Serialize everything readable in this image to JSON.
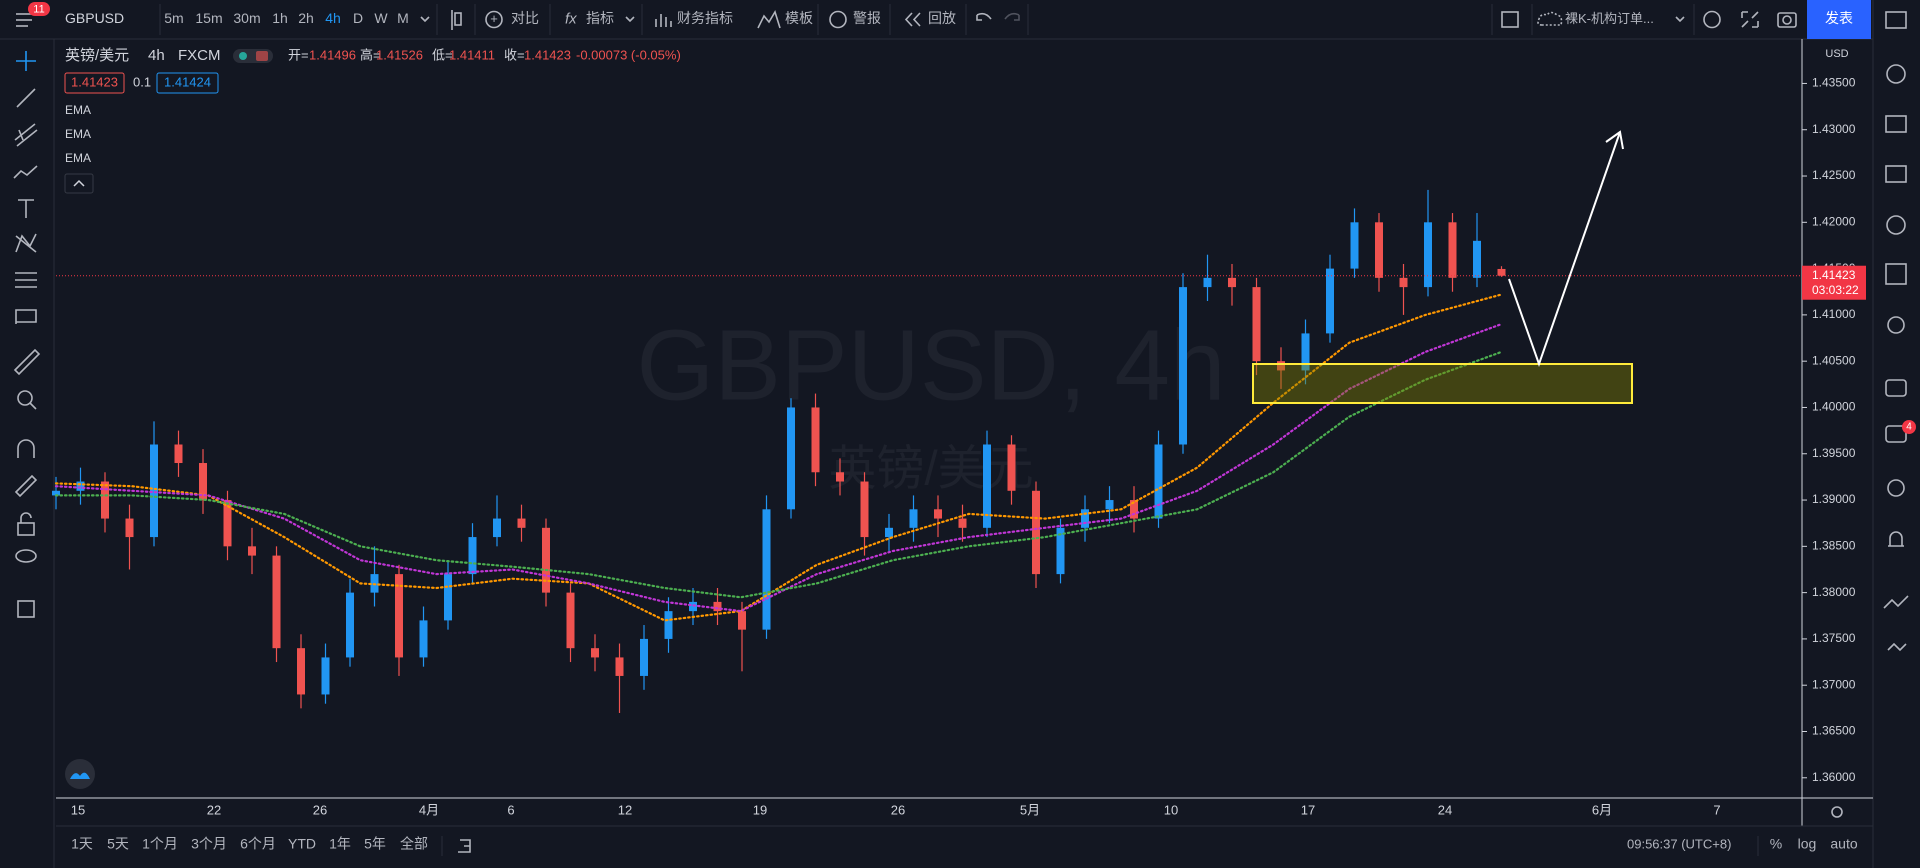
{
  "toolbar": {
    "badge": "11",
    "symbol": "GBPUSD",
    "intervals": [
      "5m",
      "15m",
      "30m",
      "1h",
      "2h",
      "4h",
      "D",
      "W",
      "M"
    ],
    "buttons": [
      "对比",
      "指标",
      "财务指标",
      "模板",
      "警报",
      "回放"
    ],
    "layout_name": "裸K-机构订单...",
    "publish": "发表"
  },
  "legend": {
    "name": "英镑/美元",
    "interval": "4h",
    "source": "FXCM",
    "ohlc": [
      {
        "label": "开=",
        "value": 1.41496
      },
      {
        "label": "高=",
        "value": 1.41526
      },
      {
        "label": "低=",
        "value": 1.41411
      },
      {
        "label": "收=",
        "value": 1.41423
      }
    ],
    "change": "-0.00073 (-0.05%)",
    "bid": 1.41423,
    "spread": 0.1,
    "ask": 1.41424
  },
  "watermark": {
    "symbol": "GBPUSD, 4h",
    "name": "英镑/美元"
  },
  "chart_data": {
    "type": "candlestick",
    "currency": "USD",
    "up_color": "#2196f3",
    "down_color": "#ef5350",
    "open": [
      1.3905,
      1.391,
      1.392,
      1.388,
      1.386,
      1.396,
      1.394,
      1.39,
      1.385,
      1.384,
      1.374,
      1.369,
      1.373,
      1.38,
      1.382,
      1.373,
      1.377,
      1.382,
      1.386,
      1.388,
      1.387,
      1.38,
      1.374,
      1.373,
      1.371,
      1.375,
      1.378,
      1.379,
      1.378,
      1.376,
      1.389,
      1.4,
      1.393,
      1.392,
      1.386,
      1.387,
      1.389,
      1.388,
      1.387,
      1.396,
      1.391,
      1.382,
      1.387,
      1.389,
      1.39,
      1.388,
      1.396,
      1.413,
      1.414,
      1.413,
      1.405,
      1.404,
      1.408,
      1.415,
      1.42,
      1.414,
      1.413,
      1.42,
      1.414,
      1.41496
    ],
    "high": [
      1.3925,
      1.3935,
      1.393,
      1.3895,
      1.3985,
      1.3975,
      1.3955,
      1.391,
      1.387,
      1.385,
      1.3755,
      1.3745,
      1.3815,
      1.385,
      1.383,
      1.3785,
      1.3835,
      1.3875,
      1.3905,
      1.3895,
      1.388,
      1.381,
      1.3755,
      1.3745,
      1.3765,
      1.3795,
      1.3805,
      1.3805,
      1.379,
      1.3905,
      1.401,
      1.4015,
      1.3945,
      1.393,
      1.3885,
      1.3905,
      1.3905,
      1.3895,
      1.3975,
      1.397,
      1.392,
      1.388,
      1.3905,
      1.3915,
      1.3915,
      1.3975,
      1.4145,
      1.4165,
      1.4155,
      1.414,
      1.4065,
      1.4095,
      1.4165,
      1.4215,
      1.421,
      1.4155,
      1.4235,
      1.421,
      1.421,
      1.41526
    ],
    "low": [
      1.389,
      1.3895,
      1.3865,
      1.3825,
      1.385,
      1.3925,
      1.3885,
      1.3835,
      1.382,
      1.3725,
      1.3675,
      1.368,
      1.372,
      1.3785,
      1.371,
      1.372,
      1.376,
      1.381,
      1.385,
      1.3855,
      1.3785,
      1.3725,
      1.3715,
      1.367,
      1.3695,
      1.3735,
      1.3765,
      1.3765,
      1.3715,
      1.375,
      1.388,
      1.3915,
      1.3905,
      1.384,
      1.3845,
      1.3855,
      1.386,
      1.3855,
      1.386,
      1.3895,
      1.3805,
      1.381,
      1.3855,
      1.3875,
      1.3865,
      1.387,
      1.395,
      1.4115,
      1.411,
      1.4035,
      1.402,
      1.4025,
      1.407,
      1.414,
      1.4125,
      1.41,
      1.412,
      1.4125,
      1.413,
      1.41411
    ],
    "close": [
      1.391,
      1.392,
      1.388,
      1.386,
      1.396,
      1.394,
      1.39,
      1.385,
      1.384,
      1.374,
      1.369,
      1.373,
      1.38,
      1.382,
      1.373,
      1.377,
      1.382,
      1.386,
      1.388,
      1.387,
      1.38,
      1.374,
      1.373,
      1.371,
      1.375,
      1.378,
      1.379,
      1.378,
      1.376,
      1.389,
      1.4,
      1.393,
      1.392,
      1.386,
      1.387,
      1.389,
      1.388,
      1.387,
      1.396,
      1.391,
      1.382,
      1.387,
      1.389,
      1.39,
      1.388,
      1.396,
      1.413,
      1.414,
      1.413,
      1.405,
      1.404,
      1.408,
      1.415,
      1.42,
      1.414,
      1.413,
      1.42,
      1.414,
      1.418,
      1.41423
    ],
    "series": [
      {
        "name": "EMA",
        "color": "#ff9800",
        "values": [
          1.3918,
          1.3915,
          1.3905,
          1.386,
          1.381,
          1.3805,
          1.3815,
          1.381,
          1.377,
          1.378,
          1.383,
          1.386,
          1.3885,
          1.388,
          1.389,
          1.3935,
          1.4005,
          1.407,
          1.41,
          1.4122
        ]
      },
      {
        "name": "EMA",
        "color": "#c036d6",
        "values": [
          1.3915,
          1.391,
          1.3905,
          1.388,
          1.3835,
          1.382,
          1.3825,
          1.381,
          1.379,
          1.378,
          1.382,
          1.3845,
          1.386,
          1.387,
          1.388,
          1.391,
          1.396,
          1.402,
          1.406,
          1.409
        ]
      },
      {
        "name": "EMA",
        "color": "#4caf50",
        "values": [
          1.3905,
          1.3905,
          1.39,
          1.3885,
          1.385,
          1.3835,
          1.3828,
          1.382,
          1.3805,
          1.3795,
          1.381,
          1.3835,
          1.385,
          1.386,
          1.3875,
          1.389,
          1.393,
          1.399,
          1.403,
          1.406
        ]
      }
    ],
    "ylim": [
      1.3576,
      1.4398
    ],
    "yticks": [
      {
        "value": 1.36,
        "label": "1.36000"
      },
      {
        "value": 1.365,
        "label": "1.36500"
      },
      {
        "value": 1.37,
        "label": "1.37000"
      },
      {
        "value": 1.375,
        "label": "1.37500"
      },
      {
        "value": 1.38,
        "label": "1.38000"
      },
      {
        "value": 1.385,
        "label": "1.38500"
      },
      {
        "value": 1.39,
        "label": "1.39000"
      },
      {
        "value": 1.395,
        "label": "1.39500"
      },
      {
        "value": 1.4,
        "label": "1.40000"
      },
      {
        "value": 1.405,
        "label": "1.40500"
      },
      {
        "value": 1.41,
        "label": "1.41000"
      },
      {
        "value": 1.415,
        "label": "1.41500"
      },
      {
        "value": 1.42,
        "label": "1.42000"
      },
      {
        "value": 1.425,
        "label": "1.42500"
      },
      {
        "value": 1.43,
        "label": "1.43000"
      },
      {
        "value": 1.435,
        "label": "1.43500"
      }
    ],
    "grid": false,
    "x_labels": [
      "15",
      "22",
      "26",
      "4月",
      "6",
      "12",
      "19",
      "26",
      "5月",
      "10",
      "17",
      "24",
      "6月",
      "7"
    ],
    "countdown": "03:03:22"
  },
  "bottom_bar": {
    "ranges": [
      "1天",
      "5天",
      "1个月",
      "3个月",
      "6个月",
      "YTD",
      "1年",
      "5年",
      "全部"
    ],
    "time": "09:56:37 (UTC+8)",
    "options": [
      "%",
      "log",
      "auto"
    ]
  },
  "sidebar": {
    "badge": "4"
  }
}
